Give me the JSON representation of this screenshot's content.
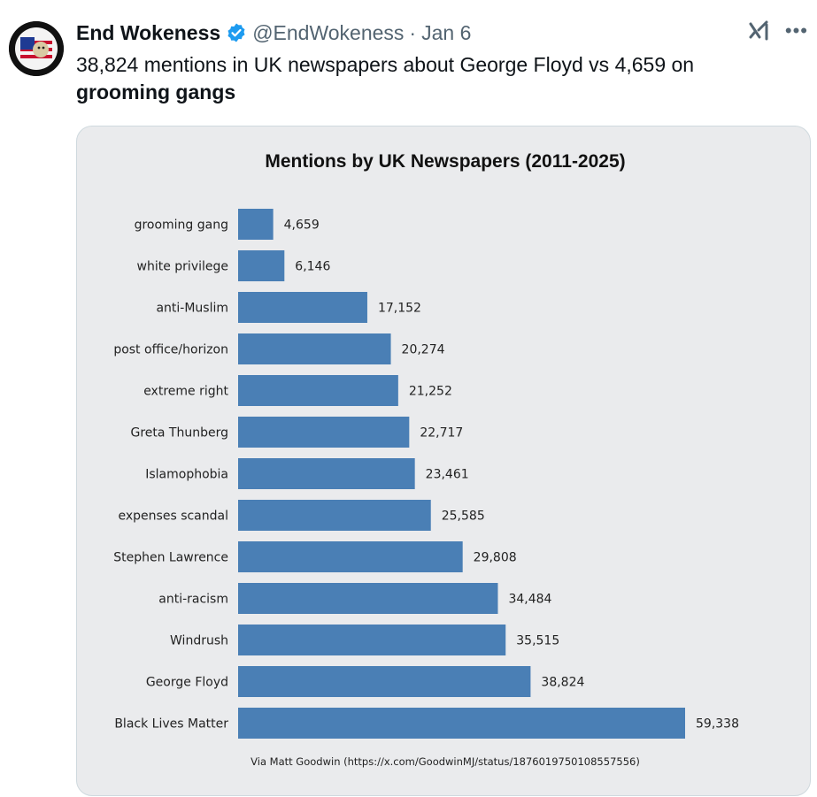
{
  "tweet": {
    "author_name": "End Wokeness",
    "handle": "@EndWokeness",
    "separator": "·",
    "date": "Jan 6",
    "text_main": "38,824 mentions in UK newspapers about George Floyd vs 4,659 on",
    "text_bold": "grooming gangs",
    "avatar_text": "I SUPPORT THE FORMER THINGS"
  },
  "icons": {
    "verified": "verified-badge-icon",
    "grok": "grok-icon",
    "more": "more-options-icon"
  },
  "colors": {
    "bar": "#4a7fb5",
    "card_background": "#eaebed",
    "verified": "#1d9bf0"
  },
  "chart_data": {
    "type": "bar",
    "orientation": "horizontal",
    "title": "Mentions by UK Newspapers (2011-2025)",
    "categories": [
      "grooming gang",
      "white privilege",
      "anti-Muslim",
      "post office/horizon",
      "extreme right",
      "Greta Thunberg",
      "Islamophobia",
      "expenses scandal",
      "Stephen Lawrence",
      "anti-racism",
      "Windrush",
      "George Floyd",
      "Black Lives Matter"
    ],
    "values": [
      4659,
      6146,
      17152,
      20274,
      21252,
      22717,
      23461,
      25585,
      29808,
      34484,
      35515,
      38824,
      59338
    ],
    "value_labels": [
      "4,659",
      "6,146",
      "17,152",
      "20,274",
      "21,252",
      "22,717",
      "23,461",
      "25,585",
      "29,808",
      "34,484",
      "35,515",
      "38,824",
      "59,338"
    ],
    "xlim": [
      0,
      59338
    ],
    "grid": false,
    "footer": "Via Matt Goodwin (https://x.com/GoodwinMJ/status/1876019750108557556)"
  }
}
